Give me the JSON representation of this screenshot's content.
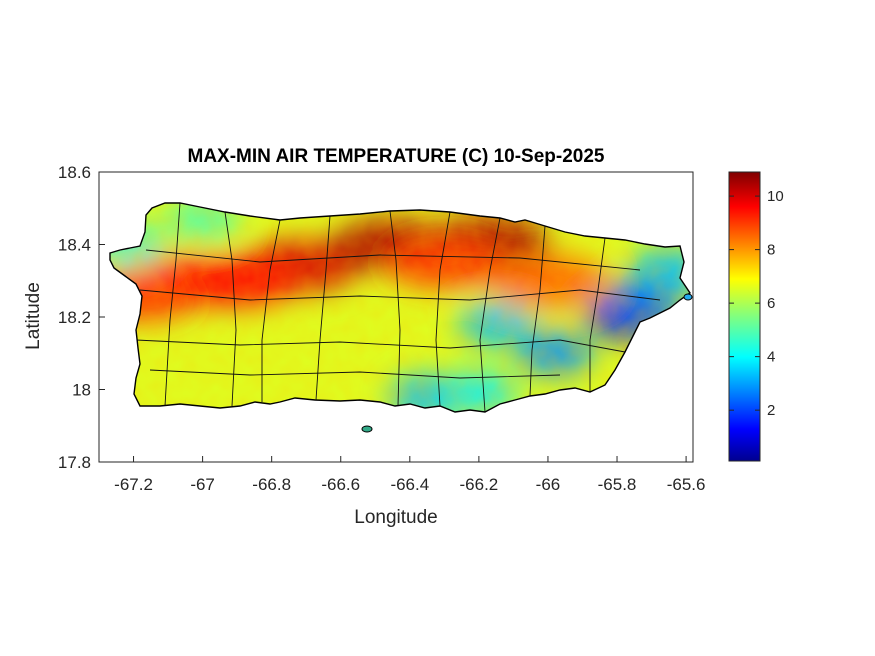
{
  "chart_data": {
    "type": "heatmap",
    "title": "MAX-MIN AIR TEMPERATURE (C) 10-Sep-2025",
    "xlabel": "Longitude",
    "ylabel": "Latitude",
    "xlim": [
      -67.3,
      -65.58
    ],
    "ylim": [
      17.8,
      18.6
    ],
    "xticks": [
      -67.2,
      -67,
      -66.8,
      -66.6,
      -66.4,
      -66.2,
      -66,
      -65.8,
      -65.6
    ],
    "yticks": [
      17.8,
      18,
      18.2,
      18.4,
      18.6
    ],
    "colorbar": {
      "colormap": "jet",
      "range": [
        0.1,
        10.9
      ],
      "ticks": [
        2,
        4,
        6,
        8,
        10
      ]
    },
    "grid": false,
    "region": "Puerto Rico",
    "hotspots": [
      {
        "lon": -66.72,
        "lat": 18.34,
        "value": 10
      },
      {
        "lon": -66.45,
        "lat": 18.4,
        "value": 10.5
      },
      {
        "lon": -66.17,
        "lat": 18.41,
        "value": 10.5
      },
      {
        "lon": -67.05,
        "lat": 18.3,
        "value": 9.5
      },
      {
        "lon": -67.18,
        "lat": 18.26,
        "value": 9
      },
      {
        "lon": -66.9,
        "lat": 18.3,
        "value": 9.5
      },
      {
        "lon": -66.3,
        "lat": 18.35,
        "value": 9
      },
      {
        "lon": -66.0,
        "lat": 18.3,
        "value": 8.5
      }
    ],
    "coldspots": [
      {
        "lon": -65.78,
        "lat": 18.2,
        "value": 1.5
      },
      {
        "lon": -65.72,
        "lat": 18.25,
        "value": 2.5
      },
      {
        "lon": -65.98,
        "lat": 18.1,
        "value": 3
      },
      {
        "lon": -66.15,
        "lat": 18.18,
        "value": 3.5
      },
      {
        "lon": -65.65,
        "lat": 18.33,
        "value": 3.5
      },
      {
        "lon": -66.35,
        "lat": 17.98,
        "value": 3.5
      },
      {
        "lon": -66.2,
        "lat": 17.99,
        "value": 4
      },
      {
        "lon": -67.22,
        "lat": 18.4,
        "value": 4.5
      },
      {
        "lon": -67.0,
        "lat": 18.47,
        "value": 5
      }
    ],
    "base_value": 6.5
  }
}
